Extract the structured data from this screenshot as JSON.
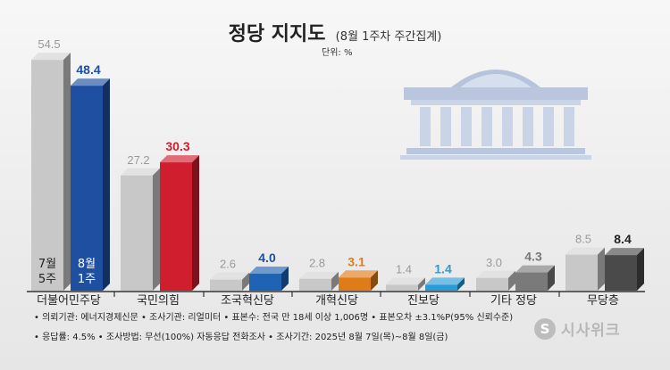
{
  "header": {
    "title": "정당 지지도",
    "subtitle": "(8월 1주차 주간집계)",
    "unit": "단위: %"
  },
  "chart_data": {
    "type": "bar",
    "categories": [
      "더불어민주당",
      "국민의힘",
      "조국혁신당",
      "개혁신당",
      "진보당",
      "기타 정당",
      "무당층"
    ],
    "series": [
      {
        "name": "7월 5주",
        "values": [
          54.5,
          27.2,
          2.6,
          2.8,
          1.4,
          3.0,
          8.5
        ]
      },
      {
        "name": "8월 1주",
        "values": [
          48.4,
          30.3,
          4.0,
          3.1,
          1.4,
          4.3,
          8.4
        ]
      }
    ],
    "legend_labels": {
      "prev": [
        "7월",
        "5주"
      ],
      "curr": [
        "8월",
        "1주"
      ]
    },
    "ylim": [
      0,
      60
    ],
    "colors": {
      "prev_front": "#c8c8c8",
      "prev_side": "#7a7a7a",
      "prev_top": "#e2e2e2",
      "curr": [
        "#1f4fa0",
        "#cf1f2e",
        "#1f63b5",
        "#e07b1a",
        "#2a9bd8",
        "#7a7a7a",
        "#4a4a4a"
      ],
      "curr_label": [
        "#1f4fa0",
        "#cf1f2e",
        "#1f4fa0",
        "#e07b1a",
        "#2a9bd8",
        "#777777",
        "#222222"
      ],
      "prev_label": "#999999"
    }
  },
  "footer": {
    "notes": [
      "• 의뢰기관: 에너지경제신문 • 조사기관: 리얼미터 • 표본수: 전국 만 18세 이상 1,006명 • 표본오차 ±3.1%P(95% 신뢰수준)",
      "• 응답률: 4.5% • 조사방법: 무선(100%) 자동응답 전화조사 • 조사기간: 2025년 8월 7일(목)~8월 8일(금)"
    ],
    "logo_text": "시사위크",
    "logo_icon": "s-circle-icon"
  },
  "illustration": {
    "icon": "national-assembly-building-icon",
    "color": "#c9d4e6"
  }
}
